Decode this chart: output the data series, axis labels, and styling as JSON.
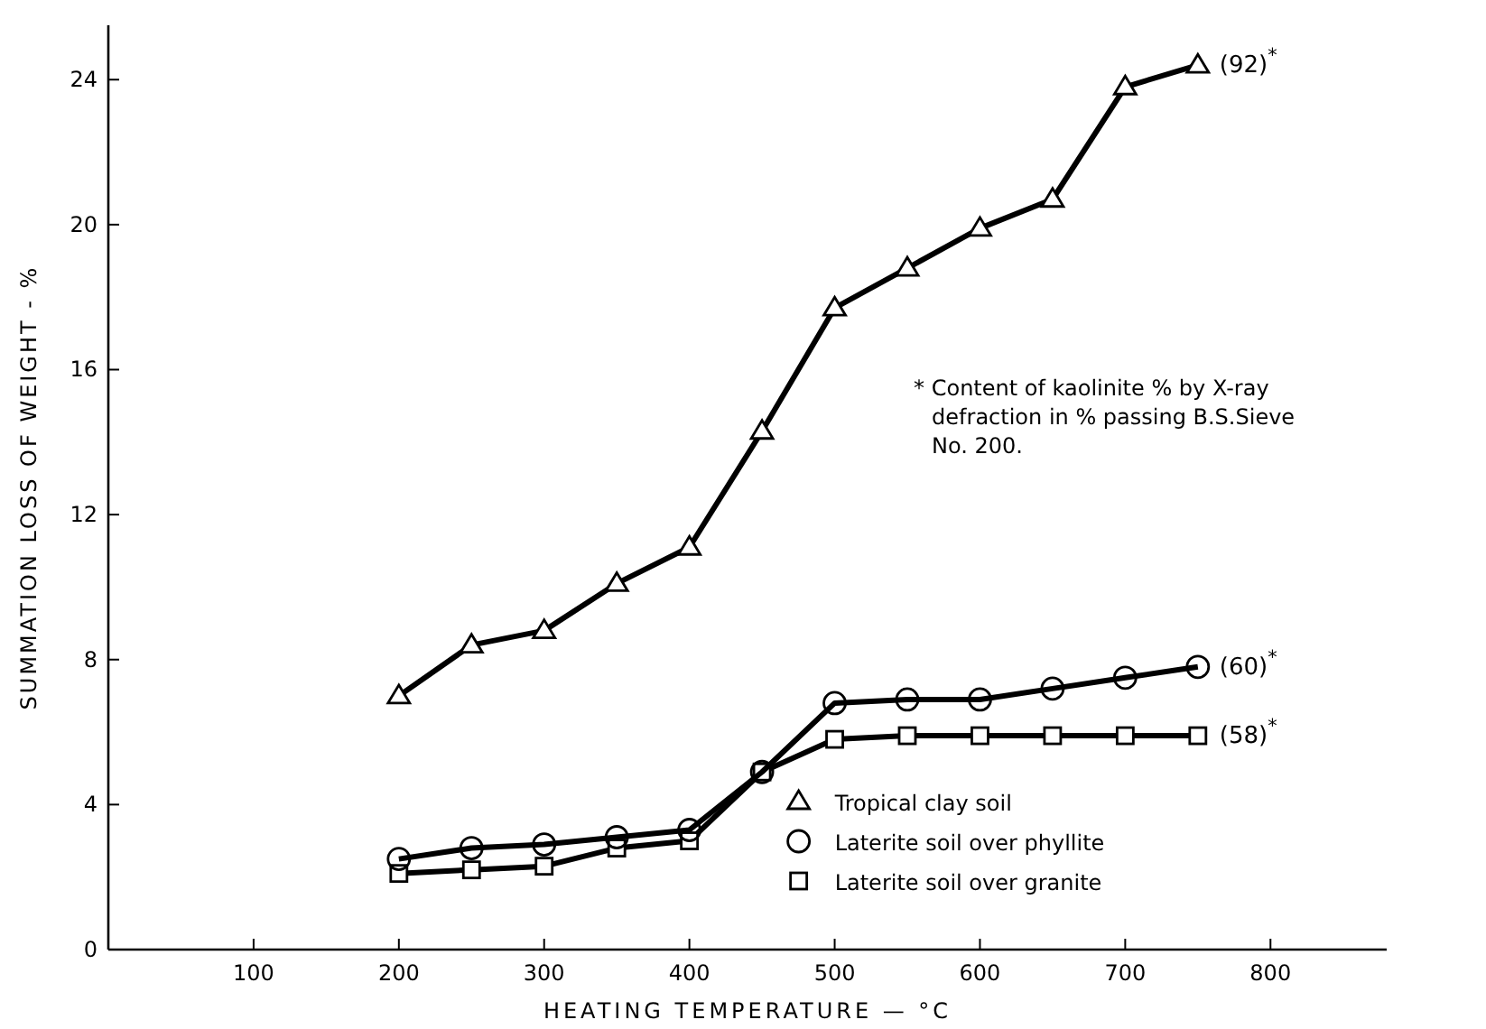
{
  "chart_data": {
    "type": "line",
    "xlabel": "HEATING  TEMPERATURE — °C",
    "ylabel": "SUMMATION LOSS OF WEIGHT - %",
    "xlim": [
      0,
      880
    ],
    "ylim": [
      0,
      25.5
    ],
    "xticks": [
      100,
      200,
      300,
      400,
      500,
      600,
      700,
      800
    ],
    "yticks": [
      0,
      4,
      8,
      12,
      16,
      20,
      24
    ],
    "legend": "bottom right",
    "grid": false,
    "series": [
      {
        "name": "Tropical clay soil",
        "color": "#000000",
        "marker": "triangle",
        "x": [
          200,
          250,
          300,
          350,
          400,
          450,
          500,
          550,
          600,
          650,
          700,
          750
        ],
        "values": [
          7.0,
          8.4,
          8.8,
          10.1,
          11.1,
          14.3,
          17.7,
          18.8,
          19.9,
          20.7,
          23.8,
          24.4
        ]
      },
      {
        "name": "Laterite soil over phyllite",
        "color": "#000000",
        "marker": "circle",
        "x": [
          200,
          250,
          300,
          350,
          400,
          450,
          500,
          550,
          600,
          650,
          700,
          750
        ],
        "values": [
          2.5,
          2.8,
          2.9,
          3.1,
          3.3,
          4.9,
          6.8,
          6.9,
          6.9,
          7.2,
          7.5,
          7.8
        ]
      },
      {
        "name": "Laterite soil over granite",
        "color": "#000000",
        "marker": "square",
        "x": [
          200,
          250,
          300,
          350,
          400,
          450,
          500,
          550,
          600,
          650,
          700,
          750
        ],
        "values": [
          2.1,
          2.2,
          2.3,
          2.8,
          3.0,
          4.9,
          5.8,
          5.9,
          5.9,
          5.9,
          5.9,
          5.9
        ]
      }
    ],
    "annotations": [
      "(92)$^{*}$",
      "(60)$^{*}$",
      "(58)$^{*}$",
      "* Content of kaolinite % by X-ray defraction in % passing B.S.Sieve No. 200."
    ]
  }
}
